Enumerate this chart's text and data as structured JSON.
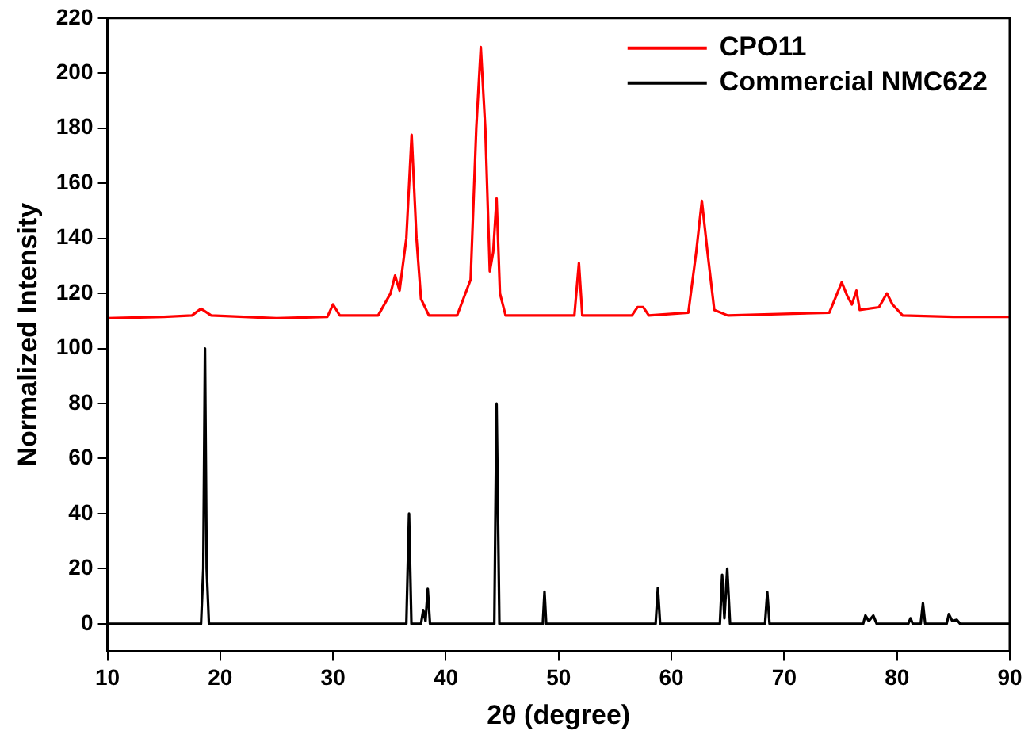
{
  "chart_data": {
    "type": "line",
    "xlabel": "2θ (degree)",
    "ylabel": "Normalized Intensity",
    "xlim": [
      10,
      90
    ],
    "xticks": [
      10,
      20,
      30,
      40,
      50,
      60,
      70,
      80,
      90
    ],
    "ylim": [
      -10,
      220
    ],
    "yticks": [
      0,
      20,
      40,
      60,
      80,
      100,
      120,
      140,
      160,
      180,
      200,
      220
    ],
    "grid": false,
    "legend": "top right",
    "marker": "none",
    "line_style": "solid",
    "series": [
      {
        "name": "CPO11",
        "color": "#ff0000",
        "x": [
          10,
          15,
          17.5,
          18.3,
          19.2,
          25,
          29.5,
          30.0,
          30.6,
          34,
          35.1,
          35.5,
          35.9,
          36.5,
          36.97,
          37.4,
          37.8,
          38.5,
          41,
          42.2,
          42.7,
          43.1,
          43.5,
          43.9,
          44.2,
          44.5,
          44.8,
          45.3,
          51.4,
          51.8,
          52.1,
          56.5,
          57,
          57.5,
          58,
          61.5,
          62.2,
          62.7,
          63.2,
          63.8,
          65,
          74,
          74.7,
          75.1,
          75.6,
          76,
          76.4,
          76.7,
          78.4,
          79.1,
          79.6,
          80.5,
          85,
          90
        ],
        "values": [
          111,
          111.5,
          112,
          114.5,
          112,
          111,
          111.5,
          116,
          112,
          112,
          120,
          126.5,
          121,
          140,
          177.6,
          140,
          118,
          112,
          112,
          125,
          180,
          209.5,
          180,
          128,
          135,
          154.5,
          120,
          112,
          112,
          131,
          112,
          112,
          115,
          115,
          112,
          113,
          135,
          153.6,
          135,
          114,
          112,
          113,
          120,
          124,
          119,
          116,
          121,
          114,
          115,
          120,
          116,
          112,
          111.5,
          111.5
        ]
      },
      {
        "name": "Commercial NMC622",
        "color": "#000000",
        "x": [
          10,
          18.3,
          18.5,
          18.65,
          18.8,
          19.0,
          36.5,
          36.74,
          36.95,
          37.8,
          38.0,
          38.2,
          38.4,
          38.6,
          44.3,
          44.5,
          44.75,
          48.6,
          48.75,
          48.9,
          58.6,
          58.8,
          59.0,
          64.3,
          64.5,
          64.7,
          64.95,
          65.2,
          68.3,
          68.5,
          68.7,
          77,
          77.2,
          77.5,
          77.9,
          78.2,
          81.0,
          81.2,
          81.4,
          82.1,
          82.3,
          82.5,
          84.4,
          84.6,
          84.9,
          85.3,
          85.6,
          90
        ],
        "values": [
          0,
          0,
          20,
          100,
          20,
          0,
          0,
          40,
          0,
          0,
          5,
          1,
          12.7,
          0,
          0,
          80,
          0,
          0,
          11.7,
          0,
          0,
          13,
          0,
          0,
          17.8,
          2,
          20,
          0,
          0,
          11.5,
          0,
          0,
          3,
          1,
          3,
          0,
          0,
          2,
          0,
          0,
          7.5,
          0,
          0,
          3.5,
          1,
          1.5,
          0,
          0
        ]
      }
    ]
  }
}
